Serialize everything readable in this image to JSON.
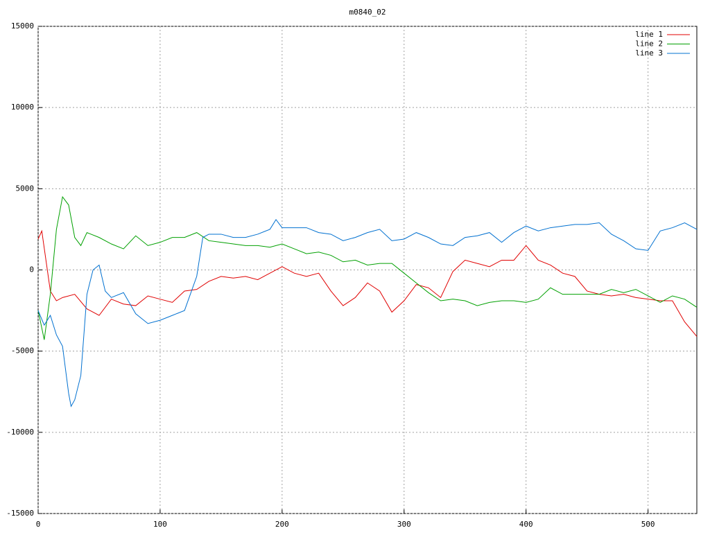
{
  "chart_data": {
    "type": "line",
    "title": "m0840_02",
    "xlim": [
      0,
      540
    ],
    "ylim": [
      -15000,
      15000
    ],
    "xticks": [
      0,
      100,
      200,
      300,
      400,
      500
    ],
    "yticks": [
      -15000,
      -10000,
      -5000,
      0,
      5000,
      10000,
      15000
    ],
    "grid": true,
    "legend": "top-right",
    "series": [
      {
        "name": "line 1",
        "color": "#e00000",
        "x": [
          0,
          3,
          10,
          15,
          20,
          30,
          40,
          50,
          60,
          70,
          80,
          90,
          100,
          110,
          120,
          130,
          140,
          150,
          160,
          170,
          180,
          190,
          200,
          210,
          220,
          230,
          240,
          250,
          260,
          270,
          280,
          290,
          300,
          310,
          320,
          330,
          340,
          350,
          360,
          370,
          380,
          390,
          400,
          410,
          420,
          430,
          440,
          450,
          460,
          470,
          480,
          490,
          500,
          510,
          520,
          530,
          540
        ],
        "values": [
          1900,
          2400,
          -1300,
          -1900,
          -1700,
          -1500,
          -2400,
          -2800,
          -1800,
          -2100,
          -2200,
          -1600,
          -1800,
          -2000,
          -1300,
          -1200,
          -700,
          -400,
          -500,
          -400,
          -600,
          -200,
          200,
          -200,
          -400,
          -200,
          -1300,
          -2200,
          -1700,
          -800,
          -1300,
          -2600,
          -1900,
          -900,
          -1100,
          -1700,
          -100,
          600,
          400,
          200,
          600,
          600,
          1500,
          600,
          300,
          -200,
          -400,
          -1300,
          -1500,
          -1600,
          -1500,
          -1700,
          -1800,
          -1900,
          -1900,
          -3200,
          -4100
        ]
      },
      {
        "name": "line 2",
        "color": "#00a000",
        "x": [
          0,
          5,
          10,
          15,
          20,
          25,
          30,
          35,
          40,
          50,
          60,
          70,
          80,
          90,
          100,
          110,
          120,
          130,
          140,
          150,
          160,
          170,
          180,
          190,
          200,
          210,
          220,
          230,
          240,
          250,
          260,
          270,
          280,
          290,
          300,
          310,
          320,
          330,
          340,
          350,
          360,
          370,
          380,
          390,
          400,
          410,
          420,
          430,
          440,
          450,
          460,
          470,
          480,
          490,
          500,
          510,
          520,
          530,
          540
        ],
        "values": [
          -2500,
          -4300,
          -1500,
          2500,
          4500,
          4000,
          2000,
          1500,
          2300,
          2000,
          1600,
          1300,
          2100,
          1500,
          1700,
          2000,
          2000,
          2300,
          1800,
          1700,
          1600,
          1500,
          1500,
          1400,
          1600,
          1300,
          1000,
          1100,
          900,
          500,
          600,
          300,
          400,
          400,
          -200,
          -800,
          -1400,
          -1900,
          -1800,
          -1900,
          -2200,
          -2000,
          -1900,
          -1900,
          -2000,
          -1800,
          -1100,
          -1500,
          -1500,
          -1500,
          -1500,
          -1200,
          -1400,
          -1200,
          -1600,
          -2000,
          -1600,
          -1800,
          -2300
        ]
      },
      {
        "name": "line 3",
        "color": "#0070d0",
        "x": [
          0,
          5,
          10,
          15,
          20,
          25,
          27,
          30,
          35,
          40,
          45,
          50,
          55,
          60,
          70,
          80,
          90,
          100,
          110,
          120,
          130,
          135,
          140,
          150,
          160,
          170,
          180,
          190,
          195,
          200,
          210,
          220,
          230,
          240,
          250,
          260,
          270,
          280,
          290,
          300,
          310,
          320,
          330,
          340,
          350,
          360,
          370,
          380,
          390,
          400,
          410,
          420,
          430,
          440,
          450,
          460,
          470,
          480,
          490,
          500,
          510,
          520,
          530,
          540
        ],
        "values": [
          -2500,
          -3400,
          -2800,
          -4000,
          -4700,
          -7600,
          -8400,
          -8000,
          -6500,
          -1500,
          0,
          300,
          -1300,
          -1700,
          -1400,
          -2700,
          -3300,
          -3100,
          -2800,
          -2500,
          -400,
          2000,
          2200,
          2200,
          2000,
          2000,
          2200,
          2500,
          3100,
          2600,
          2600,
          2600,
          2300,
          2200,
          1800,
          2000,
          2300,
          2500,
          1800,
          1900,
          2300,
          2000,
          1600,
          1500,
          2000,
          2100,
          2300,
          1700,
          2300,
          2700,
          2400,
          2600,
          2700,
          2800,
          2800,
          2900,
          2200,
          1800,
          1300,
          1200,
          2400,
          2600,
          2900,
          2500
        ]
      }
    ]
  }
}
